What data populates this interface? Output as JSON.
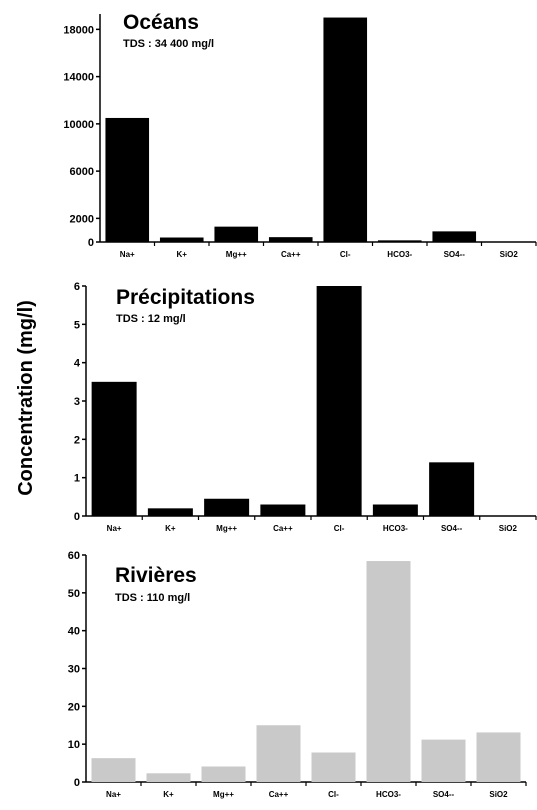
{
  "chart_data": {
    "type": "bar",
    "ylabel": "Concentration (mg/l)",
    "categories": [
      "Na+",
      "K+",
      "Mg++",
      "Ca++",
      "Cl-",
      "HCO3-",
      "SO4--",
      "SiO2"
    ],
    "panels": [
      {
        "title": "Océans",
        "subtitle": "TDS : 34 400 mg/l",
        "category_labels": [
          "Na+",
          "K+",
          "Mg++",
          "Ca++",
          "Cl-",
          "HCO3-",
          "SO4--",
          "SiO2"
        ],
        "yticks": [
          "0",
          "2000",
          "6000",
          "10000",
          "14000",
          "18000"
        ],
        "ytick_values": [
          0,
          2000,
          6000,
          10000,
          14000,
          18000
        ],
        "ylim": [
          0,
          19300
        ],
        "values": [
          10500,
          380,
          1300,
          410,
          19000,
          140,
          900,
          6
        ],
        "bar_color": "#000000"
      },
      {
        "title": "Précipitations",
        "subtitle": "TDS : 12 mg/l",
        "category_labels": [
          "Na+",
          "K+",
          "Mg++",
          "Ca++",
          "Cl-",
          "HCO3-",
          "SO4--",
          "SiO2"
        ],
        "yticks": [
          "0",
          "1",
          "2",
          "3",
          "4",
          "5",
          "6"
        ],
        "ytick_values": [
          0,
          1,
          2,
          3,
          4,
          5,
          6
        ],
        "ylim": [
          0,
          6
        ],
        "values": [
          3.5,
          0.2,
          0.45,
          0.3,
          6.0,
          0.3,
          1.4,
          0
        ],
        "bar_color": "#000000"
      },
      {
        "title": "Rivières",
        "subtitle": "TDS : 110 mg/l",
        "category_labels": [
          "Na+",
          "K+",
          "Mg++",
          "Ca++",
          "Cl-",
          "HCO3-",
          "SO4--",
          "SiO2"
        ],
        "yticks": [
          "0",
          "10",
          "20",
          "30",
          "40",
          "50",
          "60"
        ],
        "ytick_values": [
          0,
          10,
          20,
          30,
          40,
          50,
          60
        ],
        "ylim": [
          0,
          60
        ],
        "values": [
          6.3,
          2.3,
          4.1,
          15.0,
          7.8,
          58.4,
          11.2,
          13.1
        ],
        "bar_color": "#c9c9c9"
      }
    ],
    "grid": false,
    "legend": "none"
  }
}
